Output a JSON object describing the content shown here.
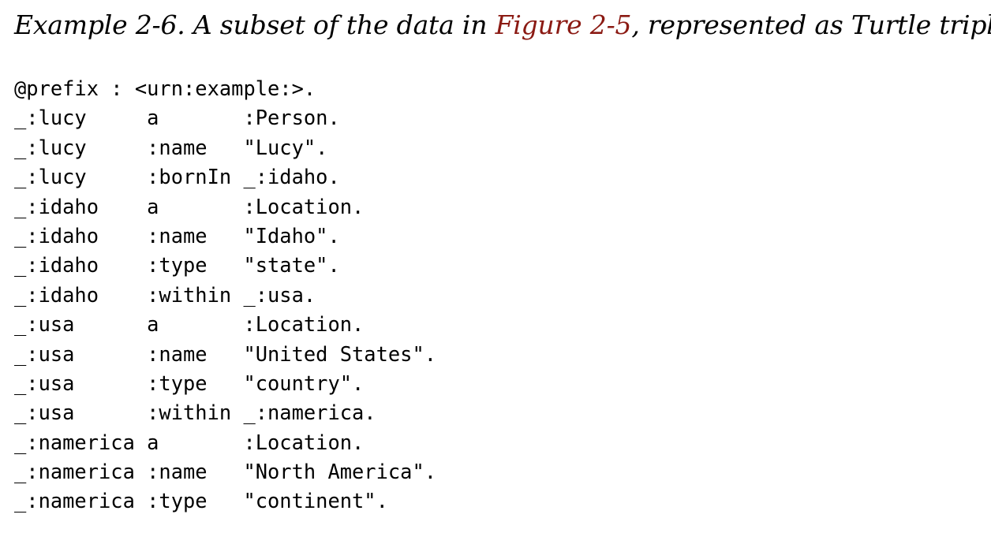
{
  "caption": {
    "prefix": "Example 2-6. A subset of the data in ",
    "link_text": "Figure 2-5",
    "suffix": ", represented as Turtle triples",
    "link_color": "#8b1a13"
  },
  "code_lines": [
    "@prefix : <urn:example:>.",
    "_:lucy     a       :Person.",
    "_:lucy     :name   \"Lucy\".",
    "_:lucy     :bornIn _:idaho.",
    "_:idaho    a       :Location.",
    "_:idaho    :name   \"Idaho\".",
    "_:idaho    :type   \"state\".",
    "_:idaho    :within _:usa.",
    "_:usa      a       :Location.",
    "_:usa      :name   \"United States\".",
    "_:usa      :type   \"country\".",
    "_:usa      :within _:namerica.",
    "_:namerica a       :Location.",
    "_:namerica :name   \"North America\".",
    "_:namerica :type   \"continent\"."
  ]
}
